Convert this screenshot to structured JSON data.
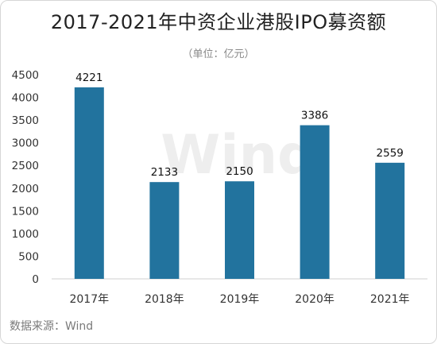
{
  "chart_data": {
    "type": "bar",
    "title": "2017-2021年中资企业港股IPO募资额",
    "subtitle": "（单位：亿元）",
    "categories": [
      "2017年",
      "2018年",
      "2019年",
      "2020年",
      "2021年"
    ],
    "values": [
      4221,
      2133,
      2150,
      3386,
      2559
    ],
    "value_labels": [
      "4221",
      "2133",
      "2150",
      "3386",
      "2559"
    ],
    "ylim": [
      0,
      4500
    ],
    "yticks": [
      0,
      500,
      1000,
      1500,
      2000,
      2500,
      3000,
      3500,
      4000,
      4500
    ],
    "grid": false,
    "bar_color": "#22739e",
    "xlabel": "",
    "ylabel": ""
  },
  "source": "数据来源：Wind",
  "watermark": "Wind"
}
